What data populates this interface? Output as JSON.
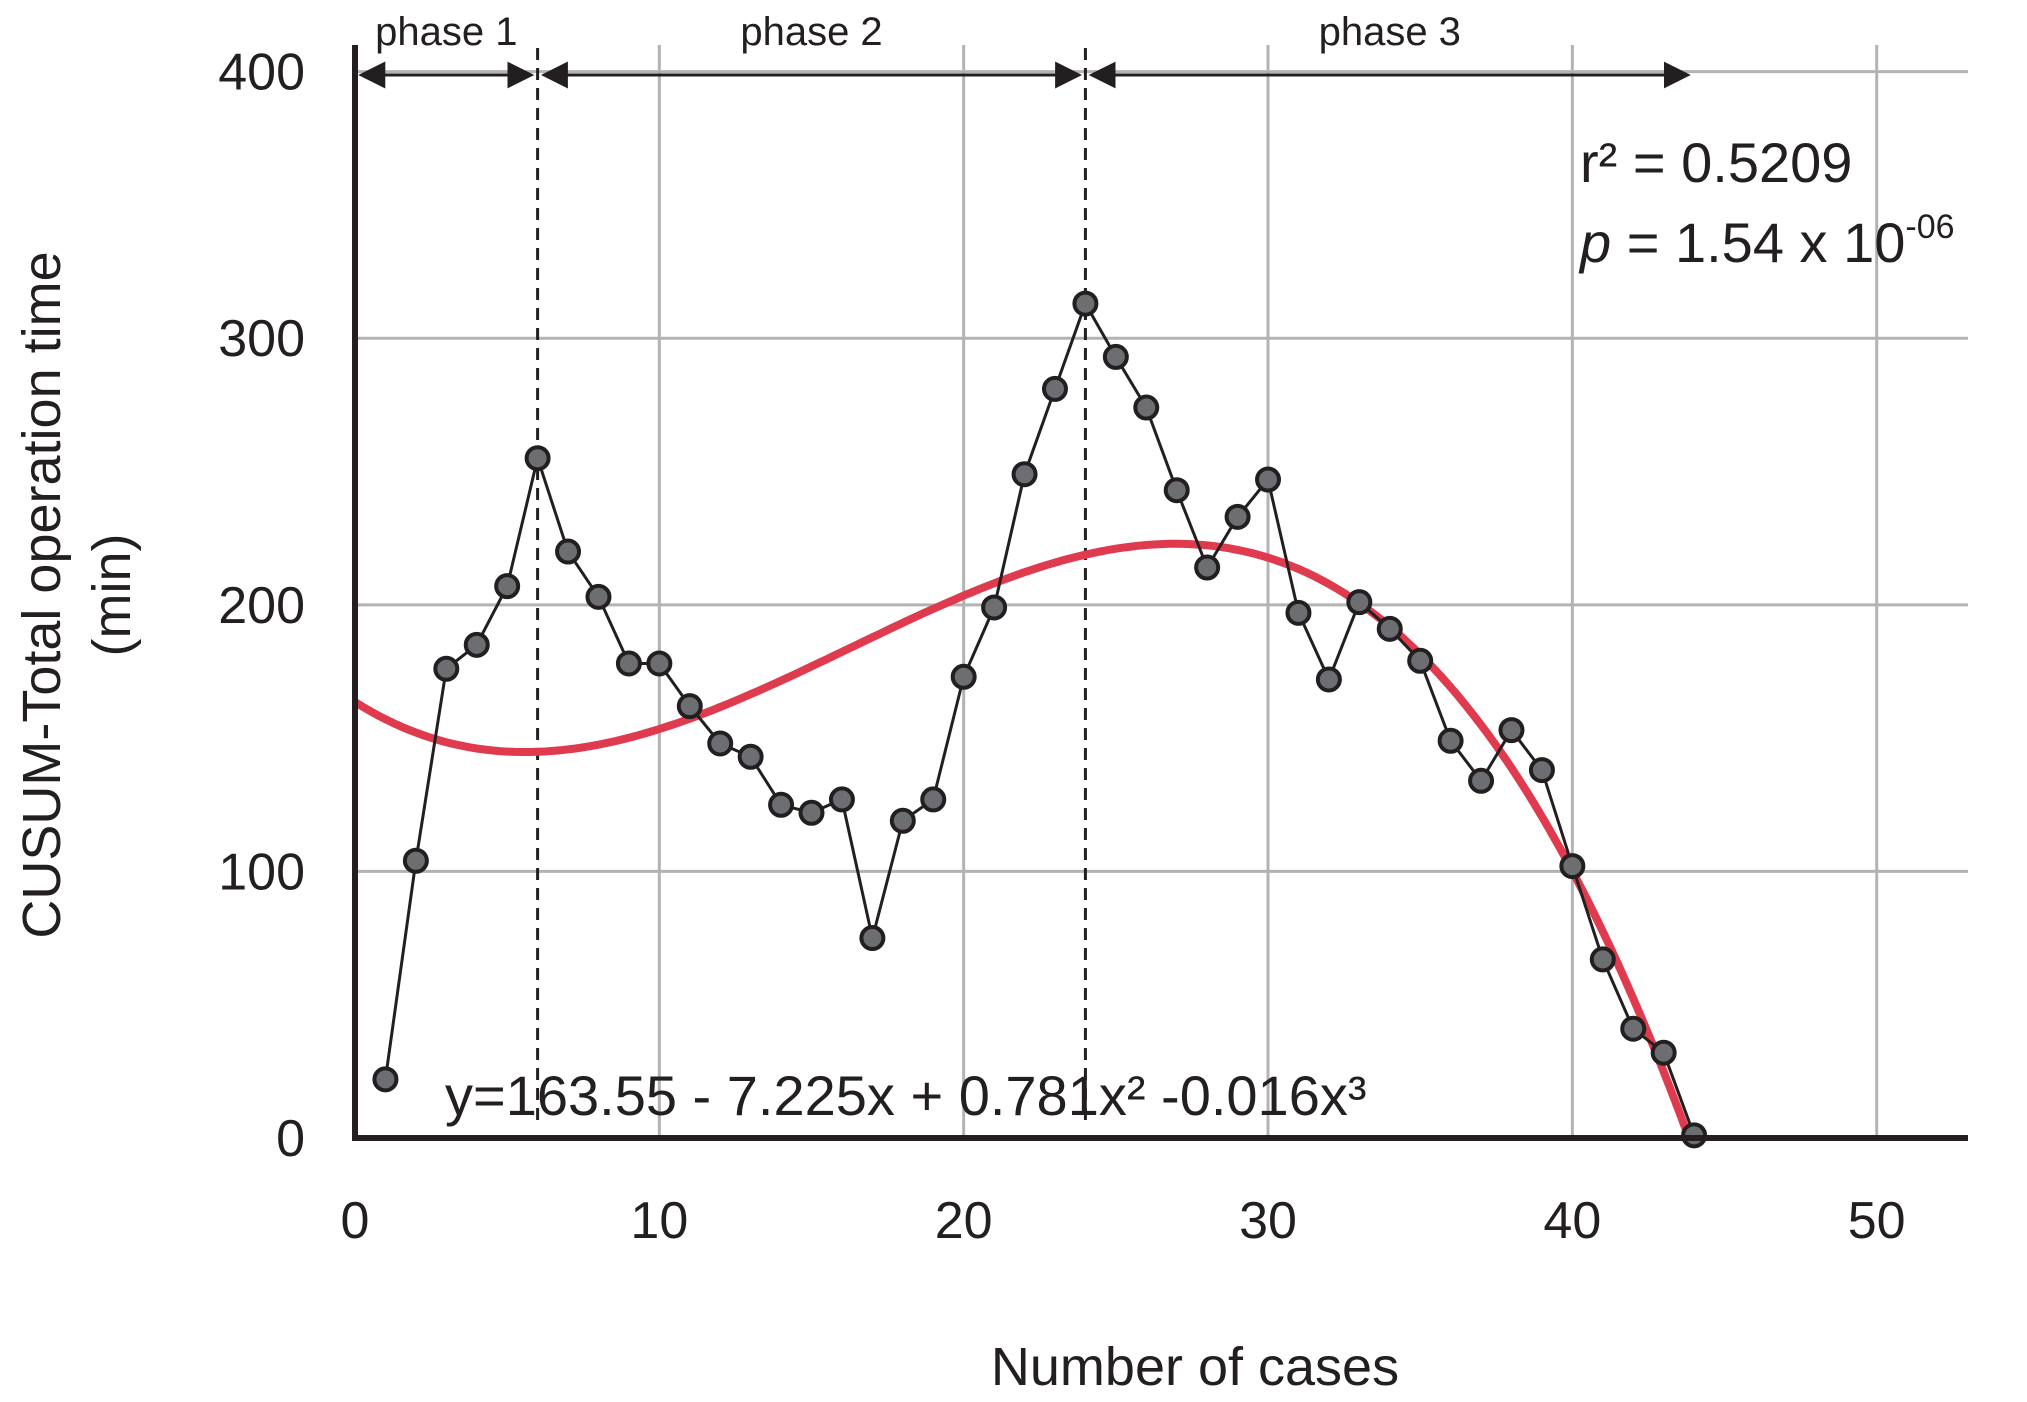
{
  "chart_data": {
    "type": "scatter",
    "xlabel": "Number of cases",
    "ylabel_line1": "CUSUM-Total operation time",
    "ylabel_line2": "(min)",
    "xlim": [
      0,
      53
    ],
    "ylim": [
      0,
      410
    ],
    "x_ticks": [
      "0",
      "10",
      "20",
      "30",
      "40",
      "50"
    ],
    "y_ticks": [
      "0",
      "100",
      "200",
      "300",
      "400"
    ],
    "grid": true,
    "colors": {
      "fit": "#e03a4e",
      "points": "#6d6e71",
      "ink": "#231f20",
      "grid": "#b3b3b3"
    },
    "series": [
      {
        "x": [
          1,
          2,
          3,
          4,
          5,
          6,
          7,
          8,
          9,
          10,
          11,
          12,
          13,
          14,
          15,
          16,
          17,
          18,
          19,
          20,
          21,
          22,
          23,
          24,
          25,
          26,
          27,
          28,
          29,
          30,
          31,
          32,
          33,
          34,
          35,
          36,
          37,
          38,
          39,
          40,
          41,
          42,
          43,
          44
        ],
        "y": [
          22,
          104,
          176,
          185,
          207,
          255,
          220,
          203,
          178,
          178,
          162,
          148,
          143,
          125,
          122,
          127,
          75,
          119,
          127,
          173,
          199,
          249,
          281,
          313,
          293,
          274,
          243,
          214,
          233,
          247,
          197,
          172,
          201,
          191,
          179,
          149,
          134,
          153,
          138,
          102,
          67,
          41,
          32,
          1
        ]
      }
    ],
    "fit": {
      "equation": "y=163.55 - 7.225x + 0.781x² -0.016x³",
      "coefficients": [
        163.55,
        -7.225,
        0.781,
        -0.016
      ],
      "x_range": [
        0,
        44
      ]
    },
    "phase_boundaries": [
      6,
      24
    ],
    "phases": [
      {
        "label": "phase 1",
        "from": 0,
        "to": 6
      },
      {
        "label": "phase 2",
        "from": 6,
        "to": 24
      },
      {
        "label": "phase 3",
        "from": 24,
        "to": 44
      }
    ],
    "stats": {
      "r2": "r² = 0.5209",
      "p_prefix": "p",
      "p_value": " = 1.54 x 10",
      "p_exponent": "-06"
    }
  }
}
